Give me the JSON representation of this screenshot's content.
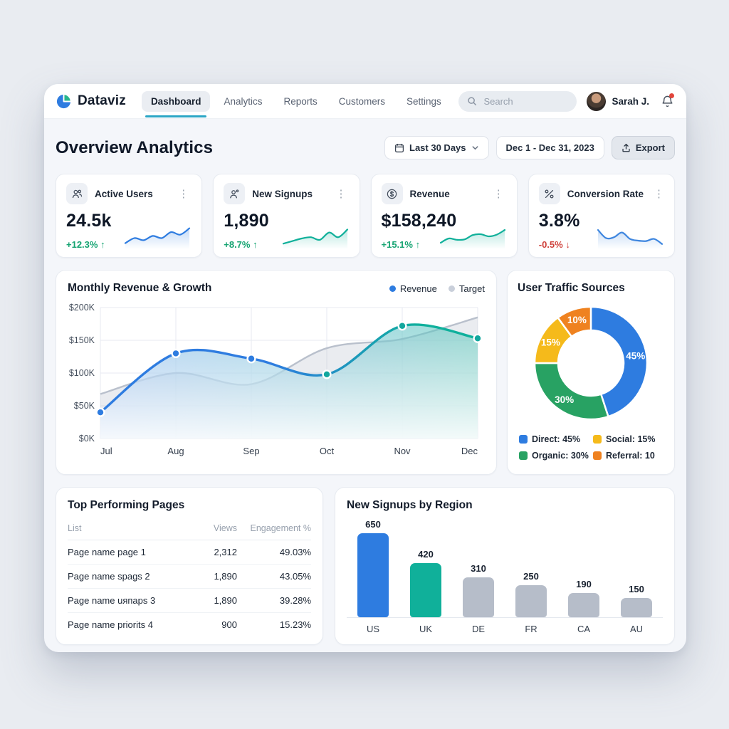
{
  "brand": {
    "name": "Dataviz"
  },
  "nav": {
    "items": [
      {
        "label": "Dashboard",
        "active": true
      },
      {
        "label": "Analytics",
        "active": false
      },
      {
        "label": "Reports",
        "active": false
      },
      {
        "label": "Customers",
        "active": false
      },
      {
        "label": "Settings",
        "active": false
      }
    ]
  },
  "search": {
    "placeholder": "Search"
  },
  "user": {
    "name": "Sarah J."
  },
  "page": {
    "title": "Overview Analytics"
  },
  "toolbar": {
    "range": "Last 30 Days",
    "dates": "Dec 1 - Dec 31, 2023",
    "export": "Export"
  },
  "stats": [
    {
      "icon": "users-icon",
      "title": "Active Users",
      "value": "24.5k",
      "delta": "+12.3% ↑",
      "trend": "up",
      "color": "#2e7ce0",
      "spark": [
        18,
        42,
        32,
        52,
        42,
        70,
        58,
        88
      ]
    },
    {
      "icon": "user-plus-icon",
      "title": "New Signups",
      "value": "1,890",
      "delta": "+8.7% ↑",
      "trend": "up",
      "color": "#10b09a",
      "spark": [
        16,
        28,
        40,
        46,
        34,
        68,
        46,
        82
      ]
    },
    {
      "icon": "dollar-icon",
      "title": "Revenue",
      "value": "$158,240",
      "delta": "+15.1% ↑",
      "trend": "up",
      "color": "#10b09a",
      "spark": [
        20,
        40,
        34,
        36,
        56,
        60,
        50,
        58,
        80
      ]
    },
    {
      "icon": "percent-icon",
      "title": "Conversion Rate",
      "value": "3.8%",
      "delta": "-0.5% ↓",
      "trend": "down",
      "color": "#3e86df",
      "spark": [
        80,
        42,
        46,
        68,
        38,
        30,
        28,
        38,
        14
      ]
    }
  ],
  "chart_data": [
    {
      "id": "monthly-revenue-growth",
      "type": "area",
      "title": "Monthly Revenue & Growth",
      "x": [
        "Jul",
        "Aug",
        "Sep",
        "Oct",
        "Nov",
        "Dec"
      ],
      "series": [
        {
          "name": "Revenue",
          "values": [
            40000,
            130000,
            122000,
            98000,
            172000,
            153000
          ],
          "color_start": "#2e7ce0",
          "color_end": "#0fb09c"
        },
        {
          "name": "Target",
          "values": [
            68000,
            100000,
            83000,
            138000,
            152000,
            185000
          ],
          "color": "#b9c0cc"
        }
      ],
      "ylim": [
        0,
        200000
      ],
      "grid": true,
      "legend_position": "top-right",
      "yticks": [
        {
          "v": 0,
          "label": "$0K"
        },
        {
          "v": 50000,
          "label": "$50K"
        },
        {
          "v": 100000,
          "label": "$100K"
        },
        {
          "v": 150000,
          "label": "$150K"
        },
        {
          "v": 200000,
          "label": "$200K"
        }
      ]
    },
    {
      "id": "user-traffic-sources",
      "type": "donut",
      "title": "User Traffic Sources",
      "slices": [
        {
          "label": "Direct",
          "value": 45,
          "text": "45%",
          "color": "#2e7ce0"
        },
        {
          "label": "Organic",
          "value": 30,
          "text": "30%",
          "color": "#28a263"
        },
        {
          "label": "Social",
          "value": 15,
          "text": "15%",
          "color": "#f5ba1b"
        },
        {
          "label": "Referral",
          "value": 10,
          "text": "10%",
          "color": "#ef8220"
        }
      ],
      "legend": [
        {
          "label": "Direct: 45%",
          "color": "#2e7ce0"
        },
        {
          "label": "Social: 15%",
          "color": "#f5ba1b"
        },
        {
          "label": "Organic: 30%",
          "color": "#28a263"
        },
        {
          "label": "Referral: 10",
          "color": "#ef8220"
        }
      ]
    },
    {
      "id": "new-signups-by-region",
      "type": "bar",
      "title": "New Signups by Region",
      "categories": [
        "US",
        "UK",
        "DE",
        "FR",
        "CA",
        "AU"
      ],
      "values": [
        650,
        420,
        310,
        250,
        190,
        150
      ],
      "colors": [
        "#2e7ce0",
        "#10b09a",
        "#b6bdc9",
        "#b6bdc9",
        "#b6bdc9",
        "#b6bdc9"
      ],
      "ylim": [
        0,
        700
      ]
    }
  ],
  "table": {
    "title": "Top Performing Pages",
    "headers": [
      "List",
      "Views",
      "Engagement %"
    ],
    "rows": [
      {
        "name": "Page name page 1",
        "views": "2,312",
        "engagement": "49.03%"
      },
      {
        "name": "Page name spags 2",
        "views": "1,890",
        "engagement": "43.05%"
      },
      {
        "name": "Page name uяпaps 3",
        "views": "1,890",
        "engagement": "39.28%"
      },
      {
        "name": "Page name priorits 4",
        "views": "900",
        "engagement": "15.23%"
      }
    ]
  }
}
